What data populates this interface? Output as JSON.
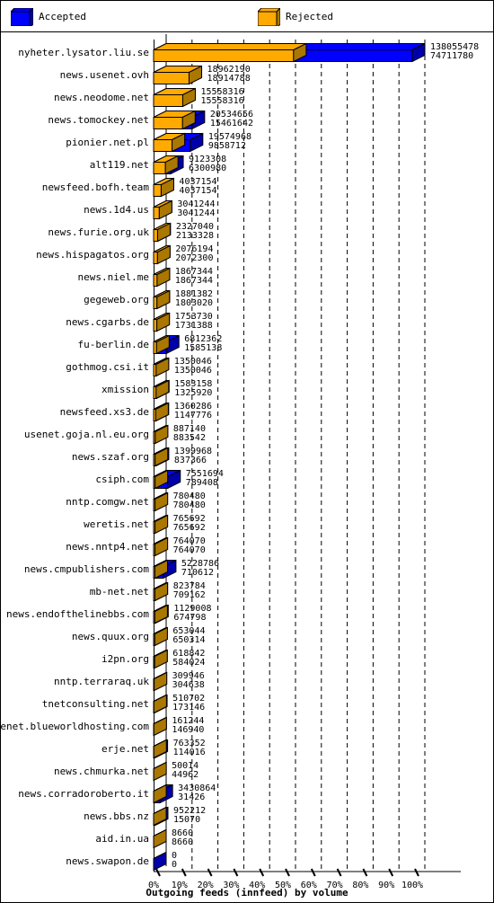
{
  "chart_data": {
    "type": "bar",
    "title": "Outgoing feeds (innfeed) by volume",
    "legend": [
      {
        "name": "Accepted",
        "color": "#0000ff"
      },
      {
        "name": "Rejected",
        "color": "#ffaa00"
      }
    ],
    "legend_placement": "top",
    "orientation": "horizontal",
    "xlim": [
      0,
      100
    ],
    "x_ticks": [
      "0%",
      "10%",
      "20%",
      "30%",
      "40%",
      "50%",
      "60%",
      "70%",
      "80%",
      "90%",
      "100%"
    ],
    "categories": [
      "nyheter.lysator.liu.se",
      "news.usenet.ovh",
      "news.neodome.net",
      "news.tomockey.net",
      "pionier.net.pl",
      "alt119.net",
      "newsfeed.bofh.team",
      "news.1d4.us",
      "news.furie.org.uk",
      "news.hispagatos.org",
      "news.niel.me",
      "gegeweb.org",
      "news.cgarbs.de",
      "fu-berlin.de",
      "gothmog.csi.it",
      "xmission",
      "newsfeed.xs3.de",
      "usenet.goja.nl.eu.org",
      "news.szaf.org",
      "csiph.com",
      "nntp.comgw.net",
      "weretis.net",
      "news.nntp4.net",
      "news.cmpublishers.com",
      "mb-net.net",
      "news.endofthelinebbs.com",
      "news.quux.org",
      "i2pn.org",
      "nntp.terraraq.uk",
      "tnetconsulting.net",
      "usenet.blueworldhosting.com",
      "erje.net",
      "news.chmurka.net",
      "news.corradoroberto.it",
      "news.bbs.nz",
      "aid.in.ua",
      "news.swapon.de"
    ],
    "series": [
      {
        "name": "Accepted",
        "values": [
          138055478,
          18962190,
          15558316,
          20534656,
          19574968,
          9123308,
          4037154,
          3041244,
          2327040,
          2076194,
          1867344,
          1881382,
          1753730,
          6812362,
          1350046,
          1583158,
          1360286,
          887140,
          1399968,
          7551694,
          780480,
          765692,
          764070,
          5228786,
          823784,
          1129008,
          653044,
          618842,
          309946,
          510702,
          161244,
          763352,
          50014,
          3430864,
          952212,
          8660,
          0
        ]
      },
      {
        "name": "Rejected",
        "values": [
          74711780,
          18914788,
          15558316,
          15461642,
          9858712,
          6300980,
          4037154,
          3041244,
          2133328,
          2072300,
          1867344,
          1803020,
          1731388,
          1585138,
          1350046,
          1325920,
          1147776,
          883542,
          837366,
          789408,
          780480,
          765692,
          764070,
          710612,
          709162,
          674798,
          650314,
          584024,
          304638,
          173146,
          146940,
          114016,
          44962,
          31426,
          15070,
          8660,
          0
        ]
      }
    ]
  }
}
